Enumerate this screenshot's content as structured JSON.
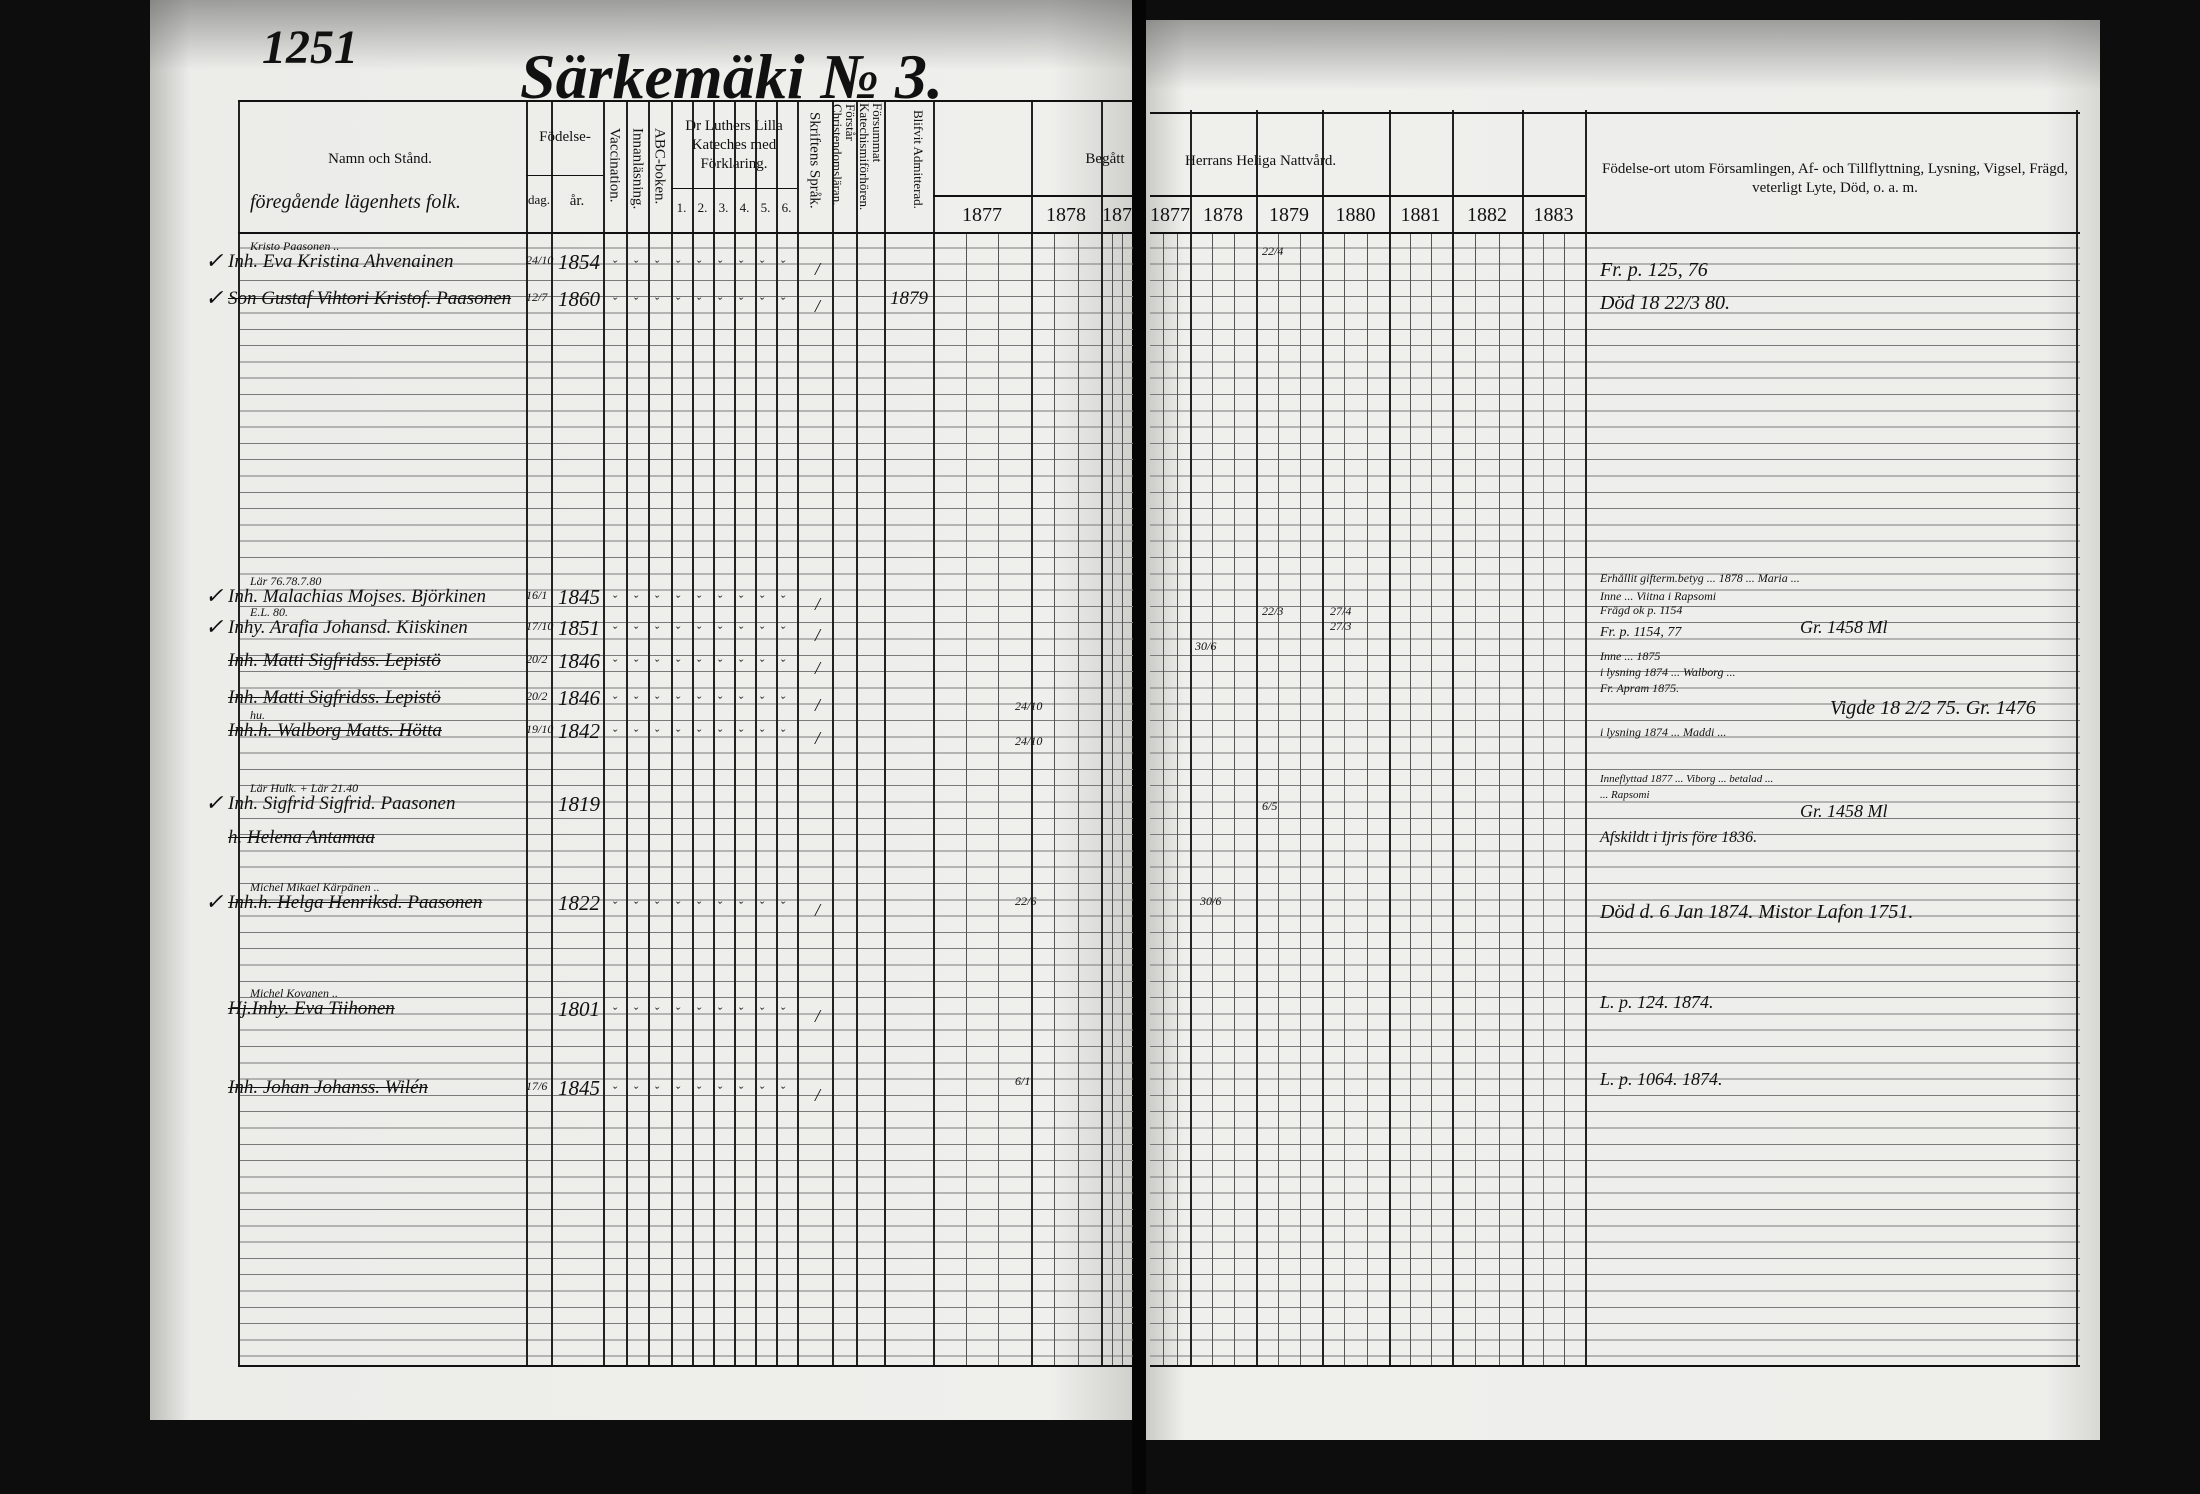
{
  "page_number": "1251",
  "title": "Särkemäki № 3.",
  "header": {
    "name_col": "Namn och Stånd.",
    "name_sub": "föregående lägenhets folk.",
    "birth": "Födelse-",
    "birth_day": "dag.",
    "birth_year": "år.",
    "vaccination": "Vaccination.",
    "innanlasning": "Innanläsning.",
    "abc": "ABC-boken.",
    "luther": "Dr Luthers Lilla Kateches med Förklaring.",
    "luther_parts": [
      "1.",
      "2.",
      "3.",
      "4.",
      "5.",
      "6."
    ],
    "skriftens": "Skriftens Språk.",
    "forstar": "Förstår Christendomsläran.",
    "forsummat": "Försummat Katechismiförhören.",
    "blifvit": "Blifvit Admitterad.",
    "begatt": "Begått",
    "nattvard": "Herrans Heliga Nattvård.",
    "years_left": [
      "1877",
      "1878",
      "187"
    ],
    "years_right": [
      "1877",
      "1878",
      "1879",
      "1880",
      "1881",
      "1882",
      "1883"
    ],
    "remarks": "Födelse-ort utom Församlingen, Af- och Tillflyttning, Lysning, Vigsel, Frägd, veterligt Lyte, Död, o. a. m."
  },
  "entries": [
    {
      "note": "Kristo Paasonen ..",
      "name": "Inh. Eva Kristina Ahvenainen",
      "day": "24/10",
      "year": "1854"
    },
    {
      "note": "",
      "name": "Son Gustaf Vihtori Kristof. Paasonen",
      "day": "12/7",
      "year": "1860",
      "admitted": "1879"
    },
    {
      "note": "Lär 76.78.7.80",
      "name": "Inh. Malachias Mojses. Björkinen",
      "day": "16/1",
      "year": "1845"
    },
    {
      "note": "E.L. 80.",
      "name": "Inhy. Arafia Johansd. Kiiskinen",
      "day": "17/10",
      "year": "1851"
    },
    {
      "note": "",
      "name": "Inh. Matti Sigfridss. Lepistö",
      "day": "20/2",
      "year": "1846"
    },
    {
      "note": "",
      "name": "Inh. Matti Sigfridss. Lepistö",
      "day": "20/2",
      "year": "1846"
    },
    {
      "note": "hu.",
      "name": "Inh.h. Walborg Matts. Hötta",
      "day": "19/10",
      "year": "1842"
    },
    {
      "note": "Lär Hulk. + Lär 21.40",
      "name": "Inh. Sigfrid Sigfrid. Paasonen",
      "day": "",
      "year": "1819"
    },
    {
      "note": "",
      "name": "h. Helena Antamaa",
      "day": "",
      "year": ""
    },
    {
      "note": "Michel Mikael Kärpänen ..",
      "name": "Inh.h. Helga Henriksd. Paasonen",
      "day": "",
      "year": "1822"
    },
    {
      "note": "Michel Kovanen ..",
      "name": "Hj.Inhy. Eva Tiihonen",
      "day": "",
      "year": "1801"
    },
    {
      "note": "",
      "name": "Inh. Johan Johanss. Wilén",
      "day": "17/6",
      "year": "1845"
    }
  ],
  "remarks": [
    "Fr. p. 125, 76",
    "Död 18 22/3 80.",
    "Erhållit gifterm.betyg ... 1878 ... Maria ...",
    "Inne ... Viitna i Rapsomi",
    "Frägd ok p. 1154",
    "Fr. p. 1154, 77",
    "Gr. 1458 Ml",
    "Inne ... 1875",
    "i lysning 1874 ... Walborg ...",
    "Fr. Apram 1875.",
    "Vigde 18 2/2 75. Gr. 1476",
    "i lysning 1874 ... Maddi ...",
    "Inneflyttad 1877 ... Viborg ... betalad ...",
    "... Rapsomi",
    "Gr. 1458 Ml",
    "Afskildt i Ijris före 1836.",
    "Död d. 6 Jan 1874. Mistor Lafon 1751.",
    "L. p. 124. 1874.",
    "L. p. 1064. 1874."
  ],
  "communion_marks": [
    "22/4",
    "27/4",
    "22/3",
    "27/3",
    "30/6",
    "24/10",
    "24/10",
    "6/5",
    "22/6",
    "30/6",
    "6/1"
  ]
}
